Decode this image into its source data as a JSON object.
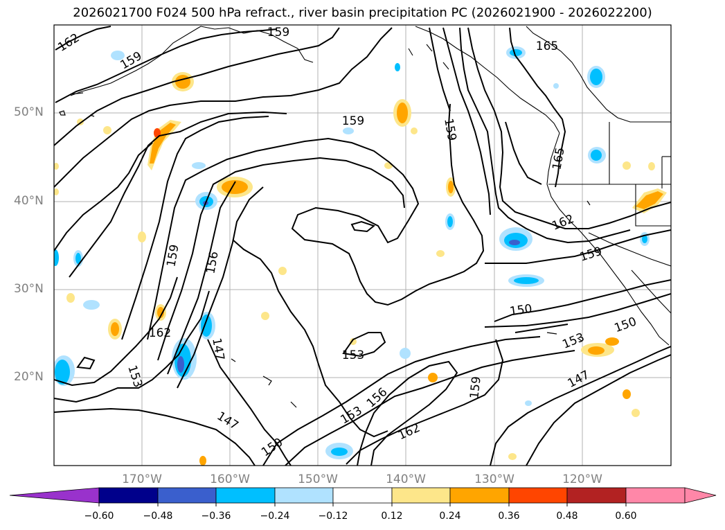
{
  "title": "2026021700 F024 500 hPa refract., river basin precipitation PC (2026021900 - 2026022200)",
  "map": {
    "lat_labels": [
      "50°N",
      "40°N",
      "30°N",
      "20°N"
    ],
    "lon_labels": [
      "170°W",
      "160°W",
      "150°W",
      "140°W",
      "130°W",
      "120°W"
    ],
    "contour_labels": [
      "162",
      "159",
      "159",
      "165",
      "159",
      "159",
      "165",
      "162",
      "159",
      "159",
      "156",
      "162",
      "147",
      "153",
      "150",
      "153",
      "150",
      "153",
      "147",
      "147",
      "153",
      "156",
      "150",
      "162",
      "159"
    ]
  },
  "colorbar": {
    "ticks": [
      "−0.60",
      "−0.48",
      "−0.36",
      "−0.24",
      "−0.12",
      "0.12",
      "0.24",
      "0.36",
      "0.48",
      "0.60"
    ],
    "colors": [
      "#9932cc",
      "#00008b",
      "#3a5fcd",
      "#00bfff",
      "#b0e2ff",
      "#ffffff",
      "#fde68a",
      "#ffa500",
      "#ff4500",
      "#b22222",
      "#ff87a8",
      "#ff87a8"
    ]
  }
}
